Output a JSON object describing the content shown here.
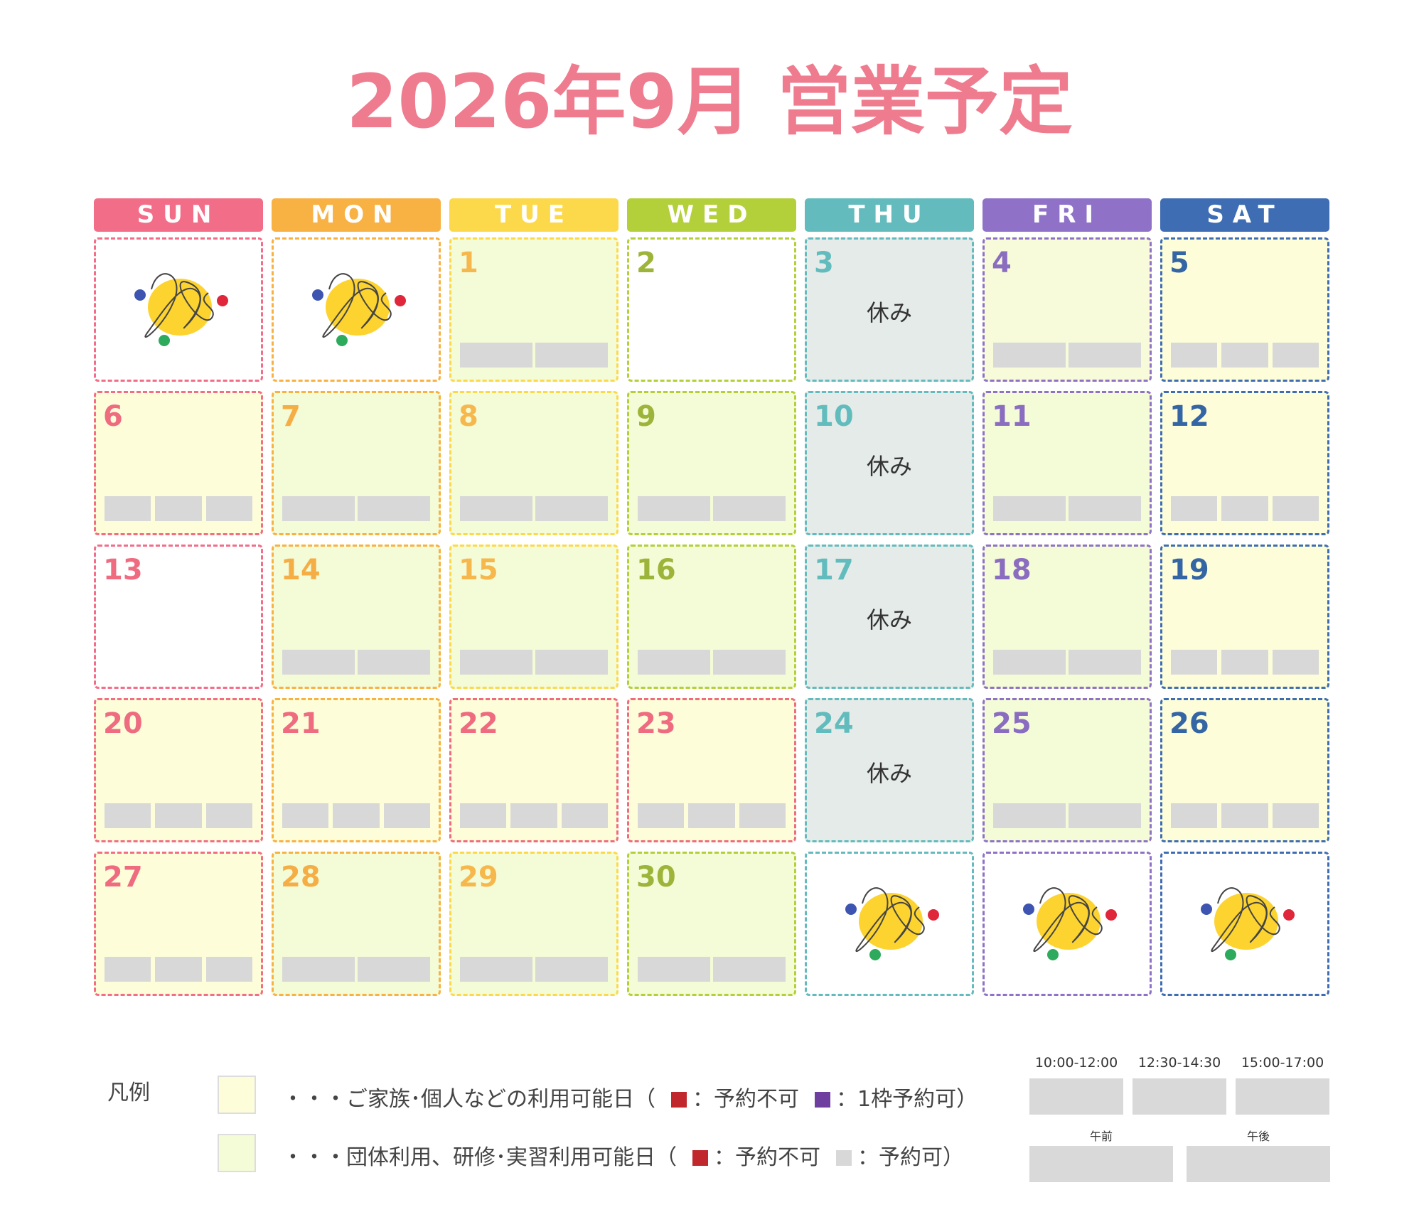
{
  "title": "2026年9月 営業予定",
  "weekdays": [
    {
      "name": "SUN",
      "color": "#f26d88"
    },
    {
      "name": "MON",
      "color": "#f8b143"
    },
    {
      "name": "TUE",
      "color": "#fcd94b"
    },
    {
      "name": "WED",
      "color": "#b3cf39"
    },
    {
      "name": "THU",
      "color": "#63bbbd"
    },
    {
      "name": "FRI",
      "color": "#8f72c7"
    },
    {
      "name": "SAT",
      "color": "#3f6db3"
    }
  ],
  "number_colors": [
    "#ef6b80",
    "#f5ae45",
    "#f6b84c",
    "#9db43a",
    "#62bcbd",
    "#8a6cc0",
    "#3465a4"
  ],
  "cells": [
    {
      "logo": true
    },
    {
      "logo": true
    },
    {
      "day": "1",
      "fill": "#f4fbd7",
      "slots": 2
    },
    {
      "day": "2",
      "fill": "#ffffff"
    },
    {
      "day": "3",
      "fill": "#e5ebe8",
      "label": "休み"
    },
    {
      "day": "4",
      "fill": "#f7fbd9",
      "slots": 2
    },
    {
      "day": "5",
      "fill": "#fdfed9",
      "slots": 3
    },
    {
      "day": "6",
      "fill": "#fdfed9",
      "slots": 3
    },
    {
      "day": "7",
      "fill": "#f4fbd7",
      "slots": 2
    },
    {
      "day": "8",
      "fill": "#f4fbd7",
      "slots": 2
    },
    {
      "day": "9",
      "fill": "#f4fbd7",
      "slots": 2
    },
    {
      "day": "10",
      "fill": "#e5ebe8",
      "label": "休み"
    },
    {
      "day": "11",
      "fill": "#f4fbd7",
      "slots": 2
    },
    {
      "day": "12",
      "fill": "#fdfed9",
      "slots": 3
    },
    {
      "day": "13",
      "fill": "#ffffff"
    },
    {
      "day": "14",
      "fill": "#f4fbd7",
      "slots": 2
    },
    {
      "day": "15",
      "fill": "#f4fbd7",
      "slots": 2
    },
    {
      "day": "16",
      "fill": "#f4fbd7",
      "slots": 2
    },
    {
      "day": "17",
      "fill": "#e5ebe8",
      "label": "休み"
    },
    {
      "day": "18",
      "fill": "#f4fbd7",
      "slots": 2
    },
    {
      "day": "19",
      "fill": "#fdfed9",
      "slots": 3
    },
    {
      "day": "20",
      "fill": "#fdfed9",
      "slots": 3
    },
    {
      "day": "21",
      "fill": "#fdfed9",
      "slots": 3,
      "color": "#ef6b80"
    },
    {
      "day": "22",
      "fill": "#fdfed9",
      "slots": 3,
      "color": "#ef6b80",
      "border": "#ef6b80"
    },
    {
      "day": "23",
      "fill": "#fdfed9",
      "slots": 3,
      "color": "#ef6b80",
      "border": "#ef6b80"
    },
    {
      "day": "24",
      "fill": "#e5ebe8",
      "label": "休み"
    },
    {
      "day": "25",
      "fill": "#f4fbd7",
      "slots": 2
    },
    {
      "day": "26",
      "fill": "#fdfed9",
      "slots": 3
    },
    {
      "day": "27",
      "fill": "#fdfed9",
      "slots": 3
    },
    {
      "day": "28",
      "fill": "#f4fbd7",
      "slots": 2
    },
    {
      "day": "29",
      "fill": "#f4fbd7",
      "slots": 2
    },
    {
      "day": "30",
      "fill": "#f4fbd7",
      "slots": 2
    },
    {
      "logo": true
    },
    {
      "logo": true
    },
    {
      "logo": true
    }
  ],
  "legend": {
    "title": "凡例",
    "items": [
      {
        "fill": "#fdfed9",
        "pieces": [
          {
            "text": "・・・ご家族･個人などの利用可能日（"
          },
          {
            "square": "#c0282d",
            "text": "：予約不可"
          },
          {
            "square": "#6f3f9f",
            "text": "：1枠予約可）"
          }
        ]
      },
      {
        "fill": "#f4fbd7",
        "pieces": [
          {
            "text": "・・・団体利用、研修･実習利用可能日（"
          },
          {
            "square": "#c0282d",
            "text": "：予約不可"
          },
          {
            "square": "#d8d8d8",
            "text": "：予約可）"
          }
        ]
      }
    ]
  },
  "time_slots": [
    "10:00-12:00",
    "12:30-14:30",
    "15:00-17:00"
  ],
  "half_days": [
    "午前",
    "午後"
  ]
}
